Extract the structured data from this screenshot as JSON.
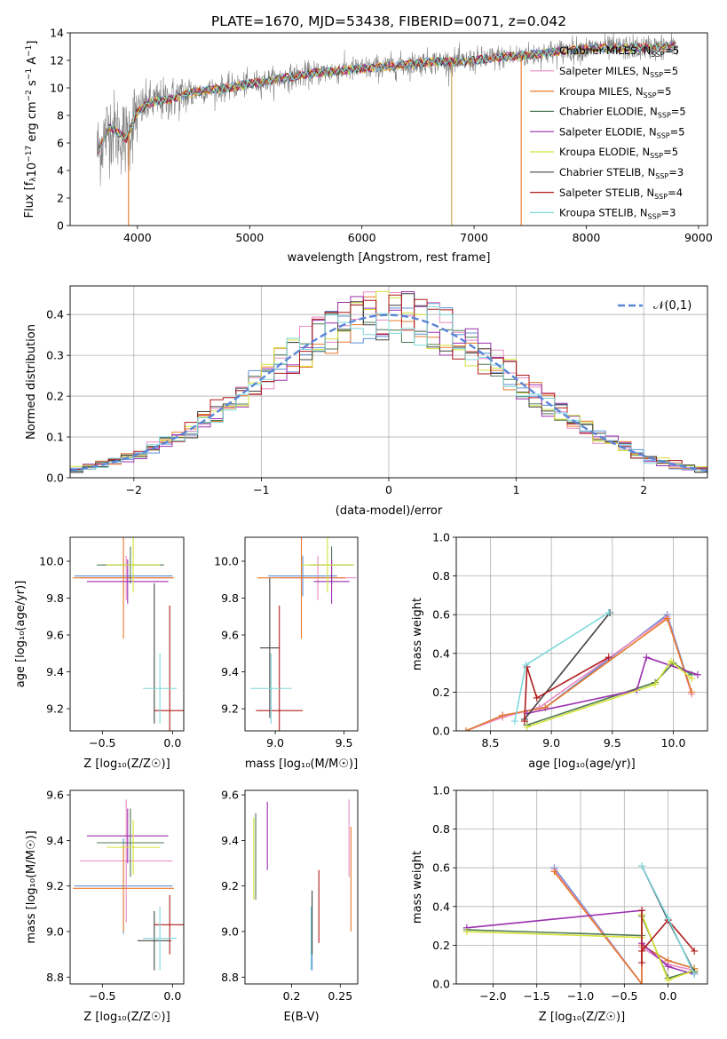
{
  "figure_title": "PLATE=1670, MJD=53438, FIBERID=0071, z=0.042",
  "palette": [
    "#1f77b4",
    "#ff7f0e",
    "#2ca02c",
    "#d62728",
    "#9467bd",
    "#8c564b",
    "#e377c2",
    "#7f7f7f",
    "#bcbd22",
    "#17becf"
  ],
  "models": [
    {
      "name": "Chabrier MILES, N$_{SSP}$=5",
      "label_main": "Chabrier MILES, N",
      "label_sub": "SSP",
      "label_tail": "=5",
      "color": "#5b8fd6"
    },
    {
      "name": "Salpeter MILES, N$_{SSP}$=5",
      "label_main": "Salpeter MILES, N",
      "label_sub": "SSP",
      "label_tail": "=5",
      "color": "#e98ac4"
    },
    {
      "name": "Kroupa MILES, N$_{SSP}$=5",
      "label_main": "Kroupa MILES, N",
      "label_sub": "SSP",
      "label_tail": "=5",
      "color": "#e8782b"
    },
    {
      "name": "Chabrier ELODIE, N$_{SSP}$=5",
      "label_main": "Chabrier ELODIE, N",
      "label_sub": "SSP",
      "label_tail": "=5",
      "color": "#4f7a52"
    },
    {
      "name": "Salpeter ELODIE, N$_{SSP}$=5",
      "label_main": "Salpeter ELODIE, N",
      "label_sub": "SSP",
      "label_tail": "=5",
      "color": "#9b2fae"
    },
    {
      "name": "Kroupa ELODIE, N$_{SSP}$=5",
      "label_main": "Kroupa ELODIE, N",
      "label_sub": "SSP",
      "label_tail": "=5",
      "color": "#d4e23a"
    },
    {
      "name": "Chabrier STELIB, N$_{SSP}$=3",
      "label_main": "Chabrier STELIB, N",
      "label_sub": "SSP",
      "label_tail": "=3",
      "color": "#444444"
    },
    {
      "name": "Salpeter STELIB, N$_{SSP}$=4",
      "label_main": "Salpeter STELIB, N",
      "label_sub": "SSP",
      "label_tail": "=4",
      "color": "#b01b1b"
    },
    {
      "name": "Kroupa STELIB, N$_{SSP}$=3",
      "label_main": "Kroupa STELIB, N",
      "label_sub": "SSP",
      "label_tail": "=3",
      "color": "#7fd8dc"
    }
  ],
  "chart_data": [
    {
      "id": "spectrum",
      "type": "line",
      "title": "PLATE=1670, MJD=53438, FIBERID=0071, z=0.042",
      "xlabel": "wavelength [Angstrom, rest frame]",
      "ylabel_main": "Flux [f",
      "ylabel_rest": "10",
      "ylabel_exp": "−17",
      "ylabel_tail": " erg cm",
      "ylabel_exp2": "−2",
      "ylabel_tail2": " s",
      "ylabel_exp3": "−1",
      "ylabel_tail3": " A",
      "ylabel_exp4": "−1",
      "ylabel_end": "]",
      "xlim": [
        3400,
        9080
      ],
      "ylim": [
        0,
        14
      ],
      "xticks": [
        4000,
        5000,
        6000,
        7000,
        8000,
        9000
      ],
      "yticks": [
        0,
        2,
        4,
        6,
        8,
        10,
        12,
        14
      ],
      "xtick_labels": [
        "4000",
        "5000",
        "6000",
        "7000",
        "8000",
        "9000"
      ],
      "ytick_labels": [
        "0",
        "2",
        "4",
        "6",
        "8",
        "10",
        "12",
        "14"
      ],
      "data_color": "#808080",
      "continuum": {
        "x": [
          3650,
          3750,
          3900,
          4000,
          4100,
          4300,
          4500,
          4800,
          5000,
          5300,
          5600,
          6000,
          6300,
          6600,
          6900,
          7200,
          7500,
          7800,
          8100,
          8400,
          8800
        ],
        "y": [
          5.5,
          7.2,
          6.3,
          8.3,
          8.9,
          9.2,
          9.7,
          10.0,
          10.3,
          10.7,
          11.1,
          11.4,
          11.6,
          11.9,
          11.9,
          12.2,
          12.4,
          12.7,
          12.9,
          12.9,
          13.0
        ]
      },
      "spectrum_range": [
        3640,
        8820
      ],
      "dips": [
        {
          "x": 3920,
          "y": 0.0
        },
        {
          "x": 6800,
          "y": 0.0
        },
        {
          "x": 7420,
          "y": 0.0
        }
      ]
    },
    {
      "id": "residuals",
      "type": "histogram",
      "xlabel": "(data-model)/error",
      "ylabel": "Normed distribution",
      "xlim": [
        -2.5,
        2.5
      ],
      "ylim": [
        0,
        0.47
      ],
      "xticks": [
        -2,
        -1,
        0,
        1,
        2
      ],
      "xtick_labels": [
        "−2",
        "−1",
        "0",
        "1",
        "2"
      ],
      "yticks": [
        0,
        0.1,
        0.2,
        0.3,
        0.4
      ],
      "ytick_labels": [
        "0.0",
        "0.1",
        "0.2",
        "0.3",
        "0.4"
      ],
      "bin_width": 0.1,
      "normal": {
        "label": "𝒩(0,1)",
        "mu": 0,
        "sigma": 1,
        "color": "#5b86d8"
      },
      "grid": true
    },
    {
      "id": "age_vs_Z",
      "type": "errorbar",
      "xlabel": "Z [log₁₀(Z/Z☉)]",
      "ylabel": "age  [log₁₀(age/yr)]",
      "xlim": [
        -0.73,
        0.08
      ],
      "ylim": [
        9.08,
        10.13
      ],
      "xticks": [
        -0.5,
        0.0
      ],
      "xtick_labels": [
        "−0.5",
        "0.0"
      ],
      "yticks": [
        9.2,
        9.4,
        9.6,
        9.8,
        10.0
      ],
      "ytick_labels": [
        "9.2",
        "9.4",
        "9.6",
        "9.8",
        "10.0"
      ],
      "points": [
        {
          "x": -0.35,
          "xerr": 0.35,
          "y": 9.92,
          "yerr": 0.11
        },
        {
          "x": -0.33,
          "xerr": 0.33,
          "y": 9.91,
          "yerr": 0.12
        },
        {
          "x": -0.35,
          "xerr": 0.36,
          "y": 9.91,
          "yerr": 0.33
        },
        {
          "x": -0.3,
          "xerr": 0.24,
          "y": 9.98,
          "yerr": 0.1
        },
        {
          "x": -0.32,
          "xerr": 0.29,
          "y": 9.89,
          "yerr": 0.12
        },
        {
          "x": -0.28,
          "xerr": 0.19,
          "y": 9.98,
          "yerr": 0.15
        },
        {
          "x": -0.13,
          "xerr": 0.0,
          "y": 9.5,
          "yerr": 0.38
        },
        {
          "x": -0.02,
          "xerr": 0.11,
          "y": 9.19,
          "yerr": 0.57
        },
        {
          "x": -0.09,
          "xerr": 0.12,
          "y": 9.31,
          "yerr": 0.19
        }
      ]
    },
    {
      "id": "age_vs_mass",
      "type": "errorbar",
      "xlabel": "mass [log₁₀(M/M☉)]",
      "ylabel": "",
      "xlim": [
        8.78,
        9.6
      ],
      "ylim": [
        9.08,
        10.13
      ],
      "xticks": [
        9.0,
        9.5
      ],
      "xtick_labels": [
        "9.0",
        "9.5"
      ],
      "yticks": [
        9.2,
        9.4,
        9.6,
        9.8,
        10.0
      ],
      "ytick_labels": [
        "9.2",
        "9.4",
        "9.6",
        "9.8",
        "10.0"
      ],
      "points": [
        {
          "x": 9.2,
          "xerr": 0.25,
          "y": 9.92,
          "yerr": 0.11
        },
        {
          "x": 9.31,
          "xerr": 0.28,
          "y": 9.91,
          "yerr": 0.12
        },
        {
          "x": 9.19,
          "xerr": 0.32,
          "y": 9.91,
          "yerr": 0.33
        },
        {
          "x": 9.41,
          "xerr": 0.16,
          "y": 9.98,
          "yerr": 0.1
        },
        {
          "x": 9.41,
          "xerr": 0.13,
          "y": 9.89,
          "yerr": 0.12
        },
        {
          "x": 9.38,
          "xerr": 0.19,
          "y": 9.98,
          "yerr": 0.15
        },
        {
          "x": 8.96,
          "xerr": 0.07,
          "y": 9.53,
          "yerr": 0.38
        },
        {
          "x": 9.03,
          "xerr": 0.17,
          "y": 9.19,
          "yerr": 0.57
        },
        {
          "x": 8.97,
          "xerr": 0.15,
          "y": 9.31,
          "yerr": 0.19
        }
      ]
    },
    {
      "id": "weight_vs_age",
      "type": "line",
      "xlabel": "age  [log₁₀(age/yr)]",
      "ylabel": "mass weight",
      "xlim": [
        8.22,
        10.28
      ],
      "ylim": [
        0,
        1.0
      ],
      "xticks": [
        8.5,
        9.0,
        9.5,
        10.0
      ],
      "xtick_labels": [
        "8.5",
        "9.0",
        "9.5",
        "10.0"
      ],
      "yticks": [
        0.0,
        0.2,
        0.4,
        0.6,
        0.8,
        1.0
      ],
      "ytick_labels": [
        "0.0",
        "0.2",
        "0.4",
        "0.6",
        "0.8",
        "1.0"
      ],
      "grid": true,
      "series": [
        {
          "x": [
            8.3,
            8.6,
            8.95,
            9.95,
            10.15
          ],
          "y": [
            0.0,
            0.08,
            0.12,
            0.6,
            0.2
          ]
        },
        {
          "x": [
            8.3,
            8.6,
            8.9,
            9.95,
            10.15
          ],
          "y": [
            0.0,
            0.07,
            0.12,
            0.59,
            0.19
          ]
        },
        {
          "x": [
            8.3,
            8.6,
            8.95,
            9.95,
            10.15
          ],
          "y": [
            0.0,
            0.08,
            0.12,
            0.58,
            0.2
          ]
        },
        {
          "x": [
            8.8,
            9.85,
            10.0,
            10.15
          ],
          "y": [
            0.03,
            0.25,
            0.35,
            0.29
          ]
        },
        {
          "x": [
            8.8,
            9.7,
            9.78,
            10.2
          ],
          "y": [
            0.09,
            0.21,
            0.38,
            0.29
          ]
        },
        {
          "x": [
            8.8,
            9.85,
            9.98,
            10.15
          ],
          "y": [
            0.02,
            0.24,
            0.36,
            0.27
          ]
        },
        {
          "x": [
            8.78,
            9.48
          ],
          "y": [
            0.06,
            0.61
          ]
        },
        {
          "x": [
            8.78,
            8.8,
            8.88,
            9.47
          ],
          "y": [
            0.05,
            0.33,
            0.17,
            0.38
          ]
        },
        {
          "x": [
            8.7,
            8.79,
            9.47
          ],
          "y": [
            0.05,
            0.34,
            0.61
          ]
        }
      ]
    },
    {
      "id": "mass_vs_Z",
      "type": "errorbar",
      "xlabel": "Z [log₁₀(Z/Z☉)]",
      "ylabel": "mass [log₁₀(M/M☉)]",
      "xlim": [
        -0.73,
        0.08
      ],
      "ylim": [
        8.77,
        9.62
      ],
      "xticks": [
        -0.5,
        0.0
      ],
      "xtick_labels": [
        "−0.5",
        "0.0"
      ],
      "yticks": [
        8.8,
        9.0,
        9.2,
        9.4,
        9.6
      ],
      "ytick_labels": [
        "8.8",
        "9.0",
        "9.2",
        "9.4",
        "9.6"
      ],
      "points": [
        {
          "x": -0.35,
          "xerr": 0.35,
          "y": 9.2,
          "yerr": 0.21
        },
        {
          "x": -0.33,
          "xerr": 0.33,
          "y": 9.31,
          "yerr": 0.27
        },
        {
          "x": -0.35,
          "xerr": 0.36,
          "y": 9.19,
          "yerr": 0.19
        },
        {
          "x": -0.3,
          "xerr": 0.24,
          "y": 9.39,
          "yerr": 0.15
        },
        {
          "x": -0.32,
          "xerr": 0.29,
          "y": 9.42,
          "yerr": 0.12
        },
        {
          "x": -0.28,
          "xerr": 0.19,
          "y": 9.37,
          "yerr": 0.12
        },
        {
          "x": -0.13,
          "xerr": 0.12,
          "y": 8.96,
          "yerr": 0.13
        },
        {
          "x": -0.02,
          "xerr": 0.11,
          "y": 9.03,
          "yerr": 0.13
        },
        {
          "x": -0.09,
          "xerr": 0.12,
          "y": 8.97,
          "yerr": 0.14
        }
      ]
    },
    {
      "id": "mass_vs_EBV",
      "type": "errorbar",
      "xlabel": "E(B-V)",
      "ylabel": "",
      "xlim": [
        0.152,
        0.268
      ],
      "ylim": [
        8.77,
        9.62
      ],
      "xticks": [
        0.2,
        0.25
      ],
      "xtick_labels": [
        "0.2",
        "0.25"
      ],
      "yticks": [
        8.8,
        9.0,
        9.2,
        9.4,
        9.6
      ],
      "ytick_labels": [
        "8.8",
        "9.0",
        "9.2",
        "9.4",
        "9.6"
      ],
      "points": [
        {
          "x": 0.221,
          "xerr": 0,
          "y": 8.99,
          "yerr": 0.16
        },
        {
          "x": 0.259,
          "xerr": 0,
          "y": 9.41,
          "yerr": 0.17
        },
        {
          "x": 0.261,
          "xerr": 0,
          "y": 9.23,
          "yerr": 0.23
        },
        {
          "x": 0.163,
          "xerr": 0,
          "y": 9.33,
          "yerr": 0.19
        },
        {
          "x": 0.175,
          "xerr": 0,
          "y": 9.42,
          "yerr": 0.15
        },
        {
          "x": 0.161,
          "xerr": 0,
          "y": 9.32,
          "yerr": 0.18
        },
        {
          "x": 0.221,
          "xerr": 0,
          "y": 9.04,
          "yerr": 0.14
        },
        {
          "x": 0.228,
          "xerr": 0,
          "y": 9.11,
          "yerr": 0.16
        },
        {
          "x": 0.22,
          "xerr": 0,
          "y": 8.97,
          "yerr": 0.14
        }
      ]
    },
    {
      "id": "weight_vs_Z",
      "type": "line",
      "xlabel": "Z [log₁₀(Z/Z☉)]",
      "ylabel": "mass weight",
      "xlim": [
        -2.42,
        0.45
      ],
      "ylim": [
        0,
        1.0
      ],
      "xticks": [
        -2.0,
        -1.5,
        -1.0,
        -0.5,
        0.0
      ],
      "xtick_labels": [
        "−2.0",
        "−1.5",
        "−1.0",
        "−0.5",
        "0.0"
      ],
      "yticks": [
        0.0,
        0.2,
        0.4,
        0.6,
        0.8,
        1.0
      ],
      "ytick_labels": [
        "0.0",
        "0.2",
        "0.4",
        "0.6",
        "0.8",
        "1.0"
      ],
      "grid": true,
      "series": [
        {
          "x": [
            -1.3,
            -0.3,
            -0.3,
            0.0,
            0.3
          ],
          "y": [
            0.6,
            0.0,
            0.2,
            0.12,
            0.08
          ]
        },
        {
          "x": [
            -1.3,
            -0.3,
            -0.3,
            0.0,
            0.3
          ],
          "y": [
            0.59,
            0.0,
            0.19,
            0.1,
            0.07
          ]
        },
        {
          "x": [
            -1.3,
            -0.3,
            -0.3,
            0.0,
            0.3
          ],
          "y": [
            0.58,
            0.0,
            0.2,
            0.12,
            0.08
          ]
        },
        {
          "x": [
            -2.3,
            -0.3,
            -0.3,
            0.0,
            0.3
          ],
          "y": [
            0.28,
            0.25,
            0.35,
            0.03,
            0.07
          ]
        },
        {
          "x": [
            -2.3,
            -0.3,
            -0.3,
            0.0,
            0.3
          ],
          "y": [
            0.29,
            0.38,
            0.21,
            0.09,
            0.05
          ]
        },
        {
          "x": [
            -2.3,
            -0.3,
            -0.3,
            0.0,
            0.3
          ],
          "y": [
            0.27,
            0.24,
            0.36,
            0.02,
            0.07
          ]
        },
        {
          "x": [
            -0.3,
            0.0,
            0.3
          ],
          "y": [
            0.61,
            0.33,
            0.06
          ]
        },
        {
          "x": [
            -0.3,
            -0.3,
            -0.3,
            0.0,
            0.3
          ],
          "y": [
            0.11,
            0.38,
            0.17,
            0.33,
            0.17
          ]
        },
        {
          "x": [
            -0.3,
            0.0,
            0.3
          ],
          "y": [
            0.61,
            0.34,
            0.05
          ]
        }
      ]
    }
  ]
}
